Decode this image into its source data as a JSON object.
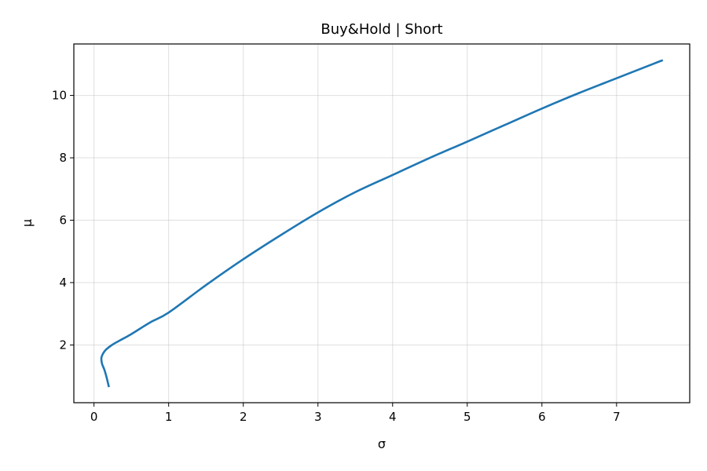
{
  "chart_data": {
    "type": "line",
    "title": "Buy&Hold | Short",
    "xlabel": "σ",
    "ylabel": "μ",
    "xlim": [
      -0.27,
      7.98
    ],
    "ylim": [
      0.15,
      11.65
    ],
    "xticks": [
      0,
      1,
      2,
      3,
      4,
      5,
      6,
      7
    ],
    "yticks": [
      2,
      4,
      6,
      8,
      10
    ],
    "grid": true,
    "series": [
      {
        "color": "#1f77b4",
        "x": [
          0.2,
          0.17,
          0.14,
          0.11,
          0.1,
          0.1,
          0.12,
          0.16,
          0.24,
          0.35,
          0.5,
          0.75,
          1.0,
          1.5,
          2.0,
          2.5,
          3.0,
          3.5,
          4.0,
          4.5,
          5.0,
          5.5,
          6.0,
          6.5,
          7.0,
          7.5,
          7.62
        ],
        "y": [
          0.65,
          0.95,
          1.2,
          1.38,
          1.5,
          1.6,
          1.72,
          1.85,
          2.0,
          2.15,
          2.35,
          2.72,
          3.04,
          3.92,
          4.75,
          5.52,
          6.25,
          6.9,
          7.45,
          8.0,
          8.52,
          9.05,
          9.58,
          10.08,
          10.55,
          11.02,
          11.13
        ]
      }
    ]
  }
}
